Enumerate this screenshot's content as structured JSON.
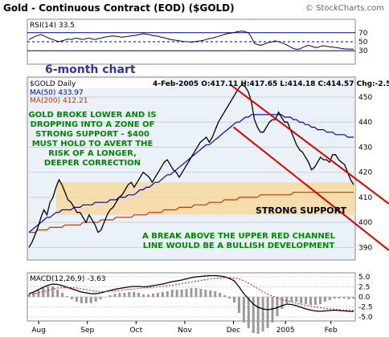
{
  "header": {
    "title": "Gold - Continuous Contract (EOD) ($GOLD)",
    "copyright": "© StockCharts.com"
  },
  "colors": {
    "price": "#000000",
    "ma50": "#0000cc",
    "ma200": "#cc3300",
    "channel": "#dd0000",
    "support_band": "#f7d9a0",
    "annotation": "#008800",
    "panel_bg": "#eaf1f7",
    "rsi_line": "#000066",
    "macd_line": "#000000",
    "signal_line": "#ff0000",
    "histogram": "#999999",
    "label_box": "#6666cc"
  },
  "rsi_panel": {
    "label": "RSI(14)",
    "value": "33.5",
    "levels": [
      "70",
      "50",
      "30"
    ]
  },
  "price_panel": {
    "chart_tag": "6-month chart",
    "symbol_line": "$GOLD Daily",
    "ohlc_line": "4-Feb-2005 O:417.11 H:417.65 L:414.18 C:414.57 Chg:-2.54",
    "ma50_label": "MA(50) 433.97",
    "ma200_label": "MA(200) 412.21",
    "annotation_lines": [
      "GOLD BROKE LOWER AND IS",
      "DROPPING INTO A ZONE OF",
      "STRONG SUPPORT - $400",
      "MUST HOLD TO AVERT THE",
      "RISK OF A LONGER,",
      "DEEPER CORRECTION"
    ],
    "support_label": "STRONG SUPPORT",
    "channel_note_lines": [
      "A BREAK ABOVE THE UPPER RED CHANNEL",
      "LINE WOULD BE A BULLISH DEVELOPMENT"
    ]
  },
  "macd_panel": {
    "label": "MACD(12,26,9)",
    "value": "-3.63",
    "ticks": [
      "5.0",
      "2.5",
      "0.0",
      "-2.5",
      "-5.0"
    ]
  },
  "chart_data": {
    "type": "line",
    "title": "Gold - Continuous Contract (EOD) ($GOLD)",
    "x_tick_labels": [
      "Aug",
      "Sep",
      "Oct",
      "Nov",
      "Dec",
      "2005",
      "Feb"
    ],
    "y_tick_labels": [
      "450",
      "440",
      "430",
      "420",
      "410",
      "400",
      "390"
    ],
    "ylim": [
      385,
      458
    ],
    "grid": true,
    "series": [
      {
        "name": "$GOLD Daily",
        "values": [
          390,
          392,
          395,
          398,
          402,
          405,
          403,
          408,
          410,
          414,
          417,
          415,
          412,
          409,
          408,
          406,
          404,
          404,
          402,
          400,
          403,
          401,
          399,
          396,
          397,
          400,
          403,
          405,
          406,
          408,
          410,
          411,
          413,
          415,
          416,
          414,
          416,
          418,
          420,
          419,
          418,
          416,
          418,
          420,
          422,
          424,
          425,
          423,
          421,
          420,
          418,
          420,
          422,
          424,
          426,
          428,
          430,
          432,
          433,
          434,
          432,
          434,
          437,
          440,
          442,
          444,
          446,
          448,
          450,
          452,
          454,
          455,
          454,
          452,
          448,
          441,
          438,
          436,
          436,
          438,
          440,
          441,
          441,
          444,
          442,
          440,
          440,
          437,
          434,
          431,
          429,
          428,
          426,
          424,
          421,
          422,
          424,
          426,
          425,
          425,
          424,
          427,
          427,
          425,
          424,
          423,
          420,
          417,
          415
        ]
      },
      {
        "name": "MA(50)",
        "values": [
          396,
          397,
          398,
          399,
          400,
          401,
          402,
          402,
          403,
          404,
          404,
          405,
          405,
          405,
          405,
          406,
          406,
          406,
          407,
          407,
          407,
          407,
          408,
          408,
          408,
          408,
          408,
          409,
          409,
          409,
          410,
          410,
          410,
          411,
          411,
          411,
          412,
          413,
          413,
          414,
          414,
          415,
          416,
          416,
          417,
          418,
          419,
          419,
          420,
          421,
          422,
          423,
          424,
          425,
          426,
          427,
          428,
          429,
          430,
          431,
          431,
          432,
          433,
          434,
          435,
          436,
          437,
          438,
          439,
          440,
          440,
          441,
          442,
          442,
          443,
          443,
          443,
          443,
          443,
          443,
          443,
          443,
          443,
          443,
          443,
          442,
          442,
          442,
          441,
          441,
          440,
          440,
          439,
          439,
          438,
          438,
          437,
          437,
          437,
          436,
          436,
          436,
          435,
          435,
          435,
          435,
          434,
          434,
          434
        ]
      },
      {
        "name": "MA(200)",
        "values": [
          396,
          396,
          396,
          397,
          397,
          397,
          397,
          398,
          398,
          398,
          398,
          398,
          399,
          399,
          399,
          399,
          399,
          399,
          400,
          400,
          400,
          400,
          400,
          400,
          401,
          401,
          401,
          401,
          401,
          402,
          402,
          402,
          402,
          402,
          402,
          403,
          403,
          403,
          403,
          403,
          404,
          404,
          404,
          404,
          404,
          405,
          405,
          405,
          405,
          405,
          406,
          406,
          406,
          406,
          406,
          407,
          407,
          407,
          407,
          407,
          408,
          408,
          408,
          408,
          408,
          409,
          409,
          409,
          409,
          409,
          410,
          410,
          410,
          410,
          410,
          410,
          410,
          411,
          411,
          411,
          411,
          411,
          411,
          411,
          411,
          411,
          411,
          411,
          412,
          412,
          412,
          412,
          412,
          412,
          412,
          412,
          412,
          412,
          412,
          412,
          412,
          412,
          412,
          412,
          412,
          412,
          412,
          412,
          412
        ]
      }
    ],
    "rsi_values": [
      55,
      58,
      62,
      64,
      66,
      63,
      60,
      57,
      55,
      52,
      50,
      52,
      54,
      56,
      55,
      57,
      58,
      56,
      55,
      57,
      58,
      56,
      55,
      57,
      58,
      60,
      61,
      62,
      63,
      62,
      61,
      60,
      61,
      62,
      63,
      64,
      65,
      66,
      68,
      67,
      66,
      64,
      63,
      62,
      60,
      59,
      57,
      55,
      54,
      53,
      52,
      51,
      50,
      50,
      49,
      50,
      51,
      52,
      53,
      55,
      57,
      58,
      60,
      62,
      64,
      66,
      68,
      69,
      70,
      72,
      73,
      74,
      72,
      70,
      60,
      46,
      44,
      42,
      44,
      47,
      49,
      50,
      52,
      50,
      48,
      45,
      42,
      38,
      35,
      33,
      34,
      37,
      40,
      42,
      40,
      38,
      37,
      40,
      41,
      40,
      39,
      38,
      37,
      36,
      35,
      34,
      34,
      33.5,
      33.5
    ],
    "macd_values": [
      0.8,
      1.2,
      1.8,
      2.4,
      2.9,
      3.2,
      3.1,
      2.8,
      2.4,
      2.0,
      1.6,
      1.2,
      1.0,
      0.8,
      0.8,
      1.0,
      1.3,
      1.6,
      1.9,
      2.1,
      2.3,
      2.5,
      2.6,
      2.6,
      2.5,
      2.6,
      2.8,
      3.0,
      3.2,
      3.5,
      3.8,
      4.0,
      4.2,
      4.5,
      4.8,
      5.0,
      5.1,
      5.2,
      5.3,
      5.3,
      5.2,
      5.0,
      4.6,
      4.0,
      2.5,
      0.8,
      -0.5,
      -1.8,
      -2.6,
      -3.0,
      -3.2,
      -3.0,
      -2.7,
      -2.2,
      -1.8,
      -1.9,
      -2.2,
      -2.6,
      -3.0,
      -3.3,
      -3.5,
      -3.6,
      -3.5,
      -3.4,
      -3.3,
      -3.4,
      -3.5,
      -3.6,
      -3.63
    ],
    "macd_signal": [
      0.5,
      0.7,
      1.0,
      1.3,
      1.6,
      1.9,
      2.2,
      2.3,
      2.3,
      2.3,
      2.2,
      2.0,
      1.8,
      1.6,
      1.4,
      1.3,
      1.3,
      1.4,
      1.5,
      1.6,
      1.8,
      1.9,
      2.0,
      2.1,
      2.2,
      2.3,
      2.4,
      2.5,
      2.6,
      2.8,
      2.9,
      3.1,
      3.3,
      3.5,
      3.7,
      3.9,
      4.1,
      4.3,
      4.5,
      4.6,
      4.7,
      4.8,
      4.8,
      4.7,
      4.5,
      4.0,
      3.4,
      2.7,
      2.0,
      1.3,
      0.7,
      0.2,
      -0.3,
      -0.7,
      -1.0,
      -1.3,
      -1.6,
      -1.8,
      -2.1,
      -2.3,
      -2.5,
      -2.7,
      -2.9,
      -3.0,
      -3.1,
      -3.2,
      -3.3,
      -3.3,
      -3.4
    ],
    "channel_upper": [
      [
        0.62,
        455
      ],
      [
        1.0,
        418
      ]
    ],
    "channel_lower": [
      [
        0.63,
        438
      ],
      [
        1.0,
        400
      ]
    ],
    "support_band": [
      403,
      416
    ]
  }
}
